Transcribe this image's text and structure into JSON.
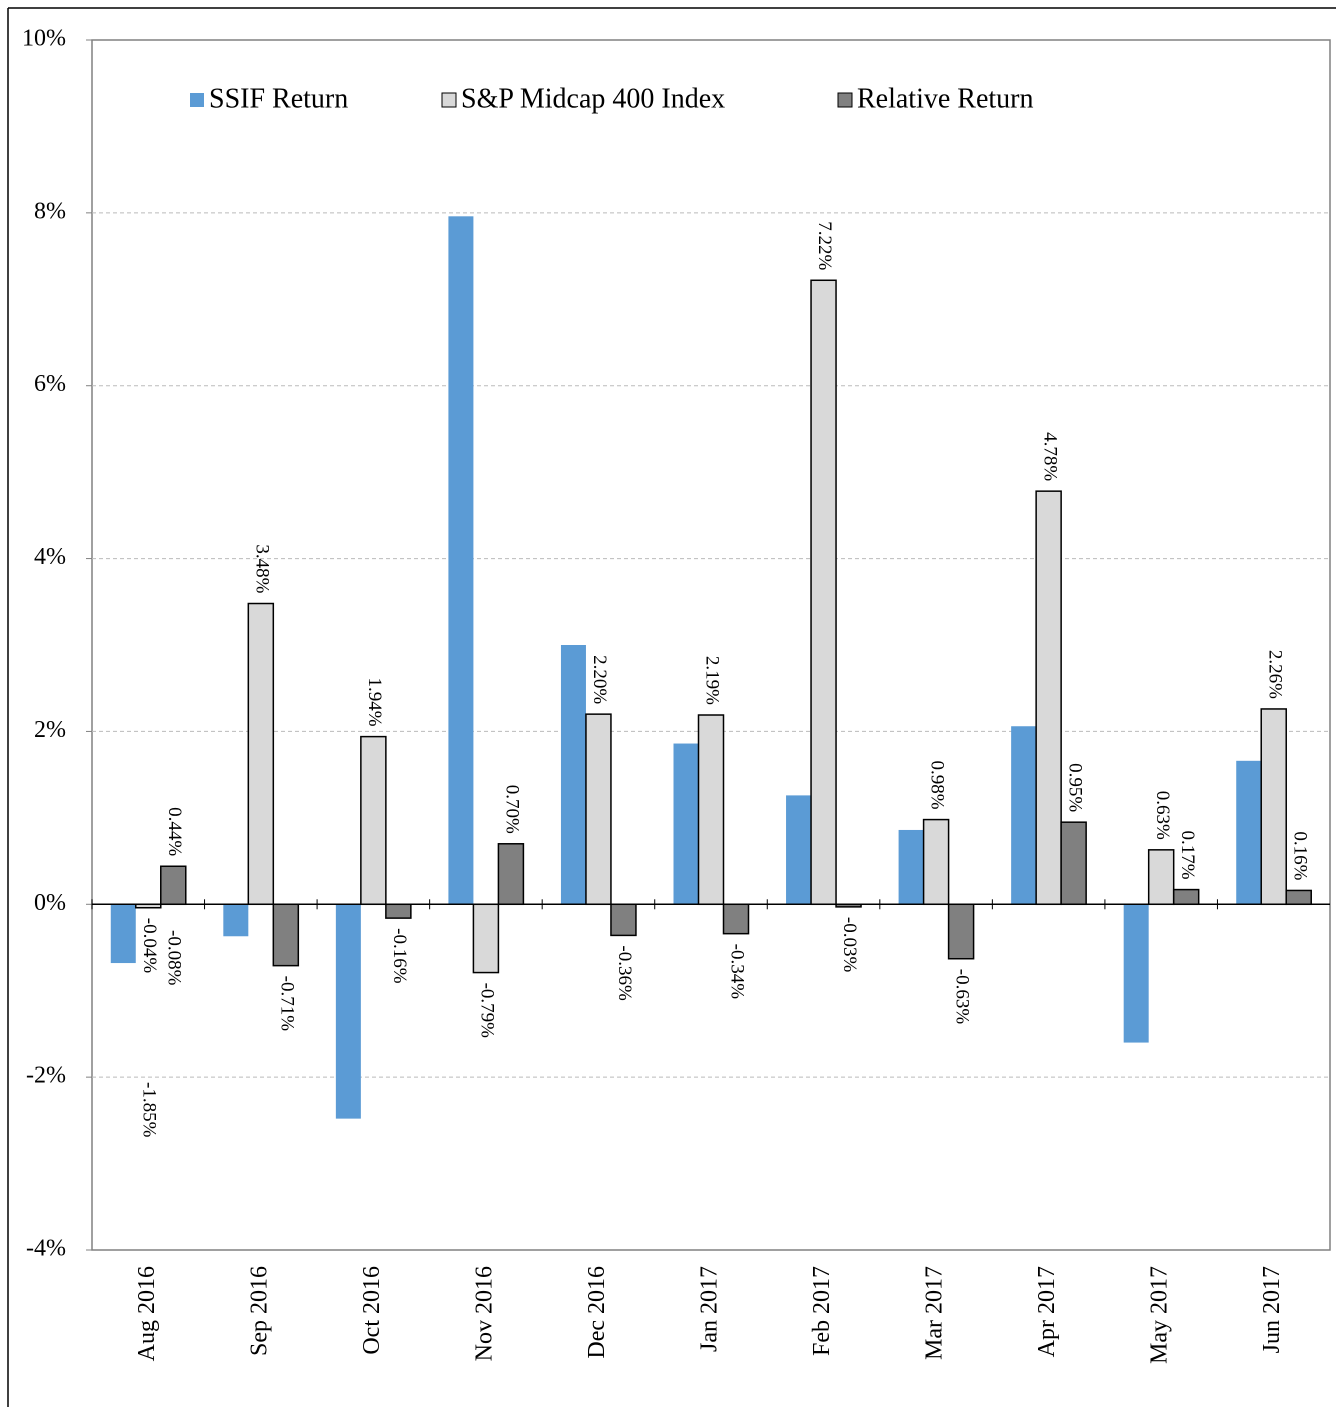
{
  "chart_data": {
    "type": "bar",
    "categories": [
      "Aug 2016",
      "Sep 2016",
      "Oct 2016",
      "Nov 2016",
      "Dec 2016",
      "Jan 2017",
      "Feb 2017",
      "Mar 2017",
      "Apr 2017",
      "May 2017",
      "Jun 2017"
    ],
    "series": [
      {
        "name": "SSIF Return",
        "color": "#5b9bd5",
        "values": [
          -0.68,
          -0.37,
          -2.48,
          7.96,
          3.0,
          1.86,
          1.26,
          0.86,
          2.06,
          -1.6,
          1.66
        ]
      },
      {
        "name": "S&P Midcap 400 Index",
        "color": "#d9d9d9",
        "values": [
          -0.04,
          3.48,
          1.94,
          -0.79,
          2.2,
          2.19,
          7.22,
          0.98,
          4.78,
          0.63,
          2.26
        ],
        "value_labels": [
          "-0.04%",
          "3.48%",
          "1.94%",
          "-0.79%",
          "2.20%",
          "2.19%",
          "7.22%",
          "0.98%",
          "4.78%",
          "0.63%",
          "2.26%"
        ]
      },
      {
        "name": "Relative Return",
        "color": "#808080",
        "values": [
          0.44,
          -0.71,
          -0.16,
          0.7,
          -0.36,
          -0.34,
          -0.03,
          -0.63,
          0.95,
          0.17,
          0.16
        ],
        "value_labels": [
          "0.44%",
          "-0.71%",
          "-0.16%",
          "0.70%",
          "-0.36%",
          "-0.34%",
          "-0.03%",
          "-0.63%",
          "0.95%",
          "0.17%",
          "0.16%"
        ]
      }
    ],
    "annotations": [
      "-0.08%",
      "-1.85%"
    ],
    "ylim": [
      -4,
      10
    ],
    "yticks": [
      {
        "value": -4,
        "label": "-4%"
      },
      {
        "value": -2,
        "label": "-2%"
      },
      {
        "value": 0,
        "label": "0%"
      },
      {
        "value": 2,
        "label": "2%"
      },
      {
        "value": 4,
        "label": "4%"
      },
      {
        "value": 6,
        "label": "6%"
      },
      {
        "value": 8,
        "label": "8%"
      },
      {
        "value": 10,
        "label": "10%"
      }
    ],
    "grid": true,
    "legend": "top"
  }
}
